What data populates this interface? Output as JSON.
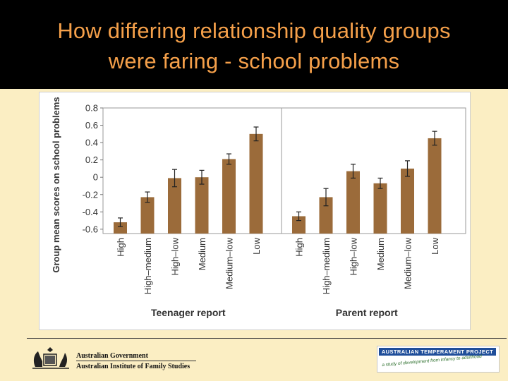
{
  "slide": {
    "title_line1": "How differing relationship quality groups",
    "title_line2": "were faring - school problems",
    "colors": {
      "title_text": "#f5a04a",
      "title_band": "#000000",
      "background": "#fbeec3",
      "bar": "#9b6b3a"
    }
  },
  "chart_data": {
    "type": "bar",
    "ylabel": "Group mean scores on school problems",
    "ylim": [
      -0.65,
      0.8
    ],
    "yticks": [
      0.8,
      0.6,
      0.4,
      0.2,
      0,
      -0.2,
      -0.4,
      -0.6
    ],
    "yticklabels": [
      "0.8",
      "0.6",
      "0.4",
      "0.2",
      "0",
      "-0.2",
      "-0.4",
      "-0.6"
    ],
    "error_bars": true,
    "panels": [
      {
        "xlabel": "Teenager report",
        "categories": [
          "High",
          "High–medium",
          "High–low",
          "Medium",
          "Medium–low",
          "Low"
        ],
        "values": [
          -0.52,
          -0.23,
          -0.01,
          0.0,
          0.21,
          0.5
        ],
        "errors": [
          0.05,
          0.06,
          0.1,
          0.08,
          0.06,
          0.08
        ]
      },
      {
        "xlabel": "Parent report",
        "categories": [
          "High",
          "High–medium",
          "High–low",
          "Medium",
          "Medium–low",
          "Low"
        ],
        "values": [
          -0.45,
          -0.23,
          0.07,
          -0.07,
          0.1,
          0.45
        ],
        "errors": [
          0.05,
          0.1,
          0.08,
          0.06,
          0.09,
          0.08
        ]
      }
    ]
  },
  "footer": {
    "gov_line1": "Australian Government",
    "gov_line2": "Australian Institute of Family Studies",
    "atp_title": "AUSTRALIAN TEMPERAMENT PROJECT",
    "atp_tagline": "a study of development from infancy to adulthood"
  }
}
